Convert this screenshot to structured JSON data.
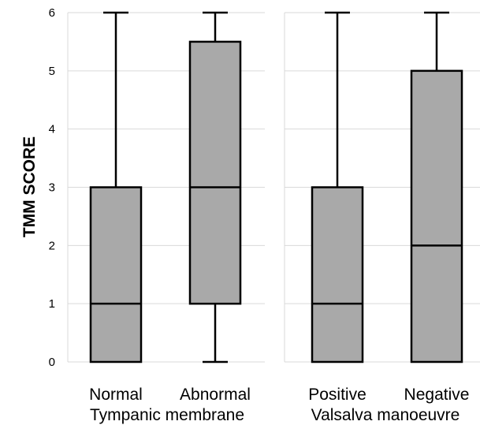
{
  "chart_data": {
    "type": "boxplot",
    "ylabel": "TMM SCORE",
    "ylim": [
      0,
      6
    ],
    "yticks": [
      "0",
      "1",
      "2",
      "3",
      "4",
      "5",
      "6"
    ],
    "grid": true,
    "colors": {
      "box_fill": "#a9a9a9",
      "stroke": "#000000",
      "grid": "#d9d9d9",
      "panel_border": "#d9d9d9"
    },
    "panels": [
      {
        "group_label": "Tympanic membrane",
        "boxes": [
          {
            "category": "Normal",
            "min": 0,
            "q1": 0,
            "median": 1,
            "q3": 3,
            "max": 6
          },
          {
            "category": "Abnormal",
            "min": 0,
            "q1": 1,
            "median": 3,
            "q3": 5.5,
            "max": 6
          }
        ]
      },
      {
        "group_label": "Valsalva manoeuvre",
        "boxes": [
          {
            "category": "Positive",
            "min": 0,
            "q1": 0,
            "median": 1,
            "q3": 3,
            "max": 6
          },
          {
            "category": "Negative",
            "min": 0,
            "q1": 0,
            "median": 2,
            "q3": 5,
            "max": 6
          }
        ]
      }
    ]
  }
}
